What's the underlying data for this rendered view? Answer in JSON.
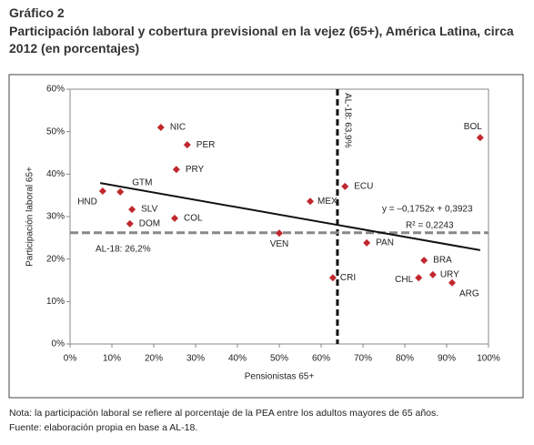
{
  "header": {
    "label": "Gráfico 2",
    "title": "Participación laboral y cobertura previsional en la vejez (65+), América Latina, circa 2012 (en porcentajes)"
  },
  "chart_data": {
    "type": "scatter",
    "x_label": "Pensionistas 65+",
    "y_label": "Participación laboral 65+",
    "labels": [
      "NIC",
      "PER",
      "PRY",
      "BOL",
      "GTM",
      "HND",
      "SLV",
      "DOM",
      "COL",
      "MEX",
      "ECU",
      "VEN",
      "PAN",
      "CRI",
      "BRA",
      "CHL",
      "URY",
      "ARG"
    ],
    "x": [
      21.7,
      28.0,
      25.4,
      98.0,
      12.0,
      7.8,
      14.8,
      14.3,
      25.0,
      57.4,
      65.7,
      50.0,
      70.9,
      62.8,
      84.6,
      83.3,
      86.7,
      91.3
    ],
    "values": [
      51.0,
      46.9,
      41.1,
      48.6,
      35.8,
      36.0,
      31.7,
      28.3,
      29.6,
      33.6,
      37.1,
      26.1,
      23.8,
      15.6,
      19.7,
      15.6,
      16.3,
      14.4
    ],
    "color": "#c0282d",
    "xlim": [
      0,
      100
    ],
    "ylim": [
      0,
      60
    ],
    "xticks": [
      {
        "value": 0,
        "label": "0%"
      },
      {
        "value": 10,
        "label": "10%"
      },
      {
        "value": 20,
        "label": "20%"
      },
      {
        "value": 30,
        "label": "30%"
      },
      {
        "value": 40,
        "label": "40%"
      },
      {
        "value": 50,
        "label": "50%"
      },
      {
        "value": 60,
        "label": "60%"
      },
      {
        "value": 70,
        "label": "70%"
      },
      {
        "value": 80,
        "label": "80%"
      },
      {
        "value": 90,
        "label": "90%"
      },
      {
        "value": 100,
        "label": "100%"
      }
    ],
    "yticks": [
      {
        "value": 0,
        "label": "0%"
      },
      {
        "value": 10,
        "label": "10%"
      },
      {
        "value": 20,
        "label": "20%"
      },
      {
        "value": 30,
        "label": "30%"
      },
      {
        "value": 40,
        "label": "40%"
      },
      {
        "value": 50,
        "label": "50%"
      },
      {
        "value": 60,
        "label": "60%"
      }
    ],
    "reference_lines": [
      {
        "axis": "x",
        "value": 63.9,
        "label": "AL-18: 63,9%"
      },
      {
        "axis": "y",
        "value": 26.2,
        "label": "AL-18: 26,2%"
      }
    ],
    "trend_line": {
      "x": [
        7.2,
        98
      ],
      "y": [
        37.9,
        22.1
      ],
      "equation": "y = –0,1752x + 0,3923",
      "r2": "R² = 0,2243"
    }
  },
  "notes": [
    "Nota: la participación laboral se refiere al porcentaje de la PEA entre los adultos mayores de 65 años.",
    "Fuente: elaboración propia en base a AL-18."
  ]
}
